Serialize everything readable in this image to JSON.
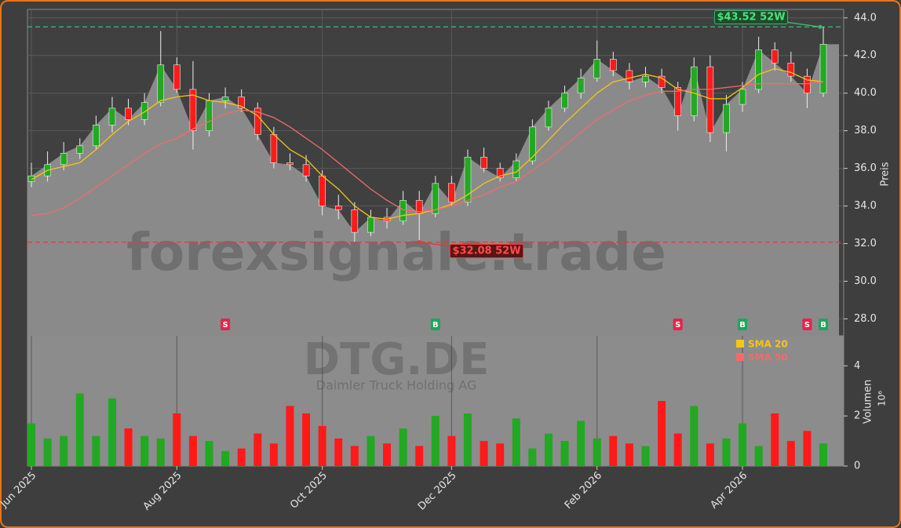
{
  "chart_data": {
    "type": "candlestick",
    "x": [
      "2025-06",
      "2025-06",
      "2025-06",
      "2025-06",
      "2025-06",
      "2025-07",
      "2025-07",
      "2025-07",
      "2025-07",
      "2025-08",
      "2025-08",
      "2025-08",
      "2025-08",
      "2025-09",
      "2025-09",
      "2025-09",
      "2025-09",
      "2025-09",
      "2025-10",
      "2025-10",
      "2025-10",
      "2025-10",
      "2025-11",
      "2025-11",
      "2025-11",
      "2025-11",
      "2025-12",
      "2025-12",
      "2025-12",
      "2025-12",
      "2025-12",
      "2026-01",
      "2026-01",
      "2026-01",
      "2026-01",
      "2026-02",
      "2026-02",
      "2026-02",
      "2026-02",
      "2026-03",
      "2026-03",
      "2026-03",
      "2026-03",
      "2026-03",
      "2026-04",
      "2026-04",
      "2026-04",
      "2026-04",
      "2026-05",
      "2026-05"
    ],
    "open": [
      35.3,
      35.6,
      36.2,
      36.8,
      37.2,
      38.3,
      39.2,
      38.6,
      39.5,
      41.5,
      40.2,
      38.0,
      39.6,
      39.8,
      39.2,
      37.8,
      36.3,
      36.2,
      35.6,
      34.0,
      33.8,
      32.6,
      33.4,
      33.2,
      34.3,
      33.6,
      35.2,
      34.2,
      36.6,
      36.0,
      35.5,
      36.4,
      38.2,
      39.2,
      40.0,
      40.8,
      41.8,
      41.2,
      40.6,
      40.9,
      40.3,
      38.8,
      41.4,
      37.9,
      39.4,
      40.2,
      42.3,
      41.6,
      40.9,
      40.0
    ],
    "high": [
      36.3,
      36.9,
      37.4,
      37.6,
      38.8,
      39.8,
      39.7,
      40.0,
      43.3,
      41.9,
      41.7,
      40.0,
      40.3,
      40.2,
      39.5,
      38.2,
      36.8,
      36.7,
      35.9,
      34.6,
      34.2,
      33.8,
      33.9,
      34.8,
      34.8,
      35.6,
      35.6,
      37.0,
      37.1,
      36.3,
      36.8,
      38.6,
      39.6,
      40.4,
      41.3,
      42.8,
      42.2,
      41.6,
      41.4,
      41.3,
      40.6,
      41.9,
      42.0,
      39.9,
      40.6,
      43.0,
      42.7,
      42.2,
      41.3,
      43.52
    ],
    "low": [
      35.0,
      35.3,
      35.9,
      36.5,
      37.0,
      37.9,
      38.3,
      38.3,
      39.3,
      40.0,
      37.0,
      37.7,
      39.2,
      39.0,
      37.5,
      36.0,
      35.9,
      35.3,
      33.5,
      33.3,
      32.1,
      32.4,
      32.8,
      33.0,
      32.08,
      33.4,
      34.0,
      34.0,
      35.8,
      35.3,
      35.3,
      36.2,
      38.0,
      39.0,
      39.7,
      40.6,
      40.9,
      40.2,
      40.3,
      40.0,
      38.0,
      38.5,
      37.4,
      36.9,
      39.0,
      40.0,
      41.2,
      40.6,
      39.2,
      39.8
    ],
    "close": [
      35.6,
      36.2,
      36.8,
      37.2,
      38.3,
      39.2,
      38.6,
      39.5,
      41.5,
      40.2,
      38.0,
      39.6,
      39.8,
      39.2,
      37.8,
      36.3,
      36.2,
      35.6,
      34.0,
      33.8,
      32.6,
      33.4,
      33.2,
      34.3,
      33.6,
      35.2,
      34.2,
      36.6,
      36.0,
      35.5,
      36.4,
      38.2,
      39.2,
      40.0,
      40.8,
      41.8,
      41.2,
      40.6,
      40.9,
      40.3,
      38.8,
      41.4,
      37.9,
      39.4,
      40.2,
      42.3,
      41.6,
      40.9,
      40.0,
      42.6
    ],
    "up_color": "#22a822",
    "down_color": "#ff1a1a",
    "sma": [
      {
        "name": "SMA 20",
        "color": "#f5c518",
        "values": [
          35.4,
          35.9,
          36.1,
          36.3,
          37.0,
          37.8,
          38.5,
          39.0,
          39.6,
          39.8,
          39.9,
          39.6,
          39.5,
          39.3,
          38.8,
          37.8,
          37.0,
          36.5,
          35.6,
          34.9,
          34.0,
          33.4,
          33.3,
          33.5,
          33.6,
          33.8,
          34.1,
          34.6,
          35.2,
          35.6,
          35.8,
          36.6,
          37.5,
          38.4,
          39.2,
          40.0,
          40.6,
          40.8,
          41.0,
          40.8,
          40.2,
          40.0,
          39.7,
          39.7,
          40.3,
          41.0,
          41.3,
          41.1,
          40.7,
          40.6
        ]
      },
      {
        "name": "SMA 50",
        "color": "#f26b6b",
        "values": [
          33.5,
          33.6,
          33.9,
          34.4,
          35.0,
          35.6,
          36.2,
          36.8,
          37.3,
          37.6,
          38.1,
          38.5,
          38.9,
          39.1,
          39.0,
          38.7,
          38.2,
          37.6,
          37.0,
          36.3,
          35.6,
          34.9,
          34.3,
          33.8,
          33.7,
          33.8,
          34.0,
          34.3,
          34.6,
          35.0,
          35.3,
          35.9,
          36.5,
          37.2,
          37.9,
          38.6,
          39.1,
          39.6,
          39.9,
          40.1,
          40.1,
          40.2,
          40.2,
          40.3,
          40.4,
          40.5,
          40.5,
          40.5,
          40.5,
          40.6
        ]
      }
    ],
    "signals": [
      null,
      null,
      null,
      null,
      null,
      null,
      null,
      null,
      null,
      null,
      null,
      null,
      "S",
      null,
      null,
      null,
      null,
      null,
      null,
      null,
      null,
      null,
      null,
      null,
      null,
      "B",
      null,
      null,
      null,
      null,
      null,
      null,
      null,
      null,
      null,
      null,
      null,
      null,
      null,
      null,
      "S",
      null,
      null,
      null,
      "B",
      null,
      null,
      null,
      "S",
      "B"
    ],
    "high_52w": {
      "value": 43.52,
      "label": "$43.52 52W"
    },
    "low_52w": {
      "value": 32.08,
      "label": "$32.08 52W"
    },
    "ylabel": "Preis",
    "ylim": [
      27.1,
      44.45
    ],
    "yticks": [
      {
        "value": 28,
        "label": "28.0"
      },
      {
        "value": 30,
        "label": "30.0"
      },
      {
        "value": 32,
        "label": "32.0"
      },
      {
        "value": 34,
        "label": "34.0"
      },
      {
        "value": 36,
        "label": "36.0"
      },
      {
        "value": 38,
        "label": "38.0"
      },
      {
        "value": 40,
        "label": "40.0"
      },
      {
        "value": 42,
        "label": "42.0"
      },
      {
        "value": 44,
        "label": "44.0"
      }
    ],
    "xticks": [
      {
        "value": "2025-06",
        "label": "Jun 2025"
      },
      {
        "value": "2025-08",
        "label": "Aug 2025"
      },
      {
        "value": "2025-10",
        "label": "Oct 2025"
      },
      {
        "value": "2025-12",
        "label": "Dec 2025"
      },
      {
        "value": "2026-02",
        "label": "Feb 2026"
      },
      {
        "value": "2026-04",
        "label": "Apr 2026"
      }
    ],
    "volume": {
      "ylabel": "Volumen",
      "scale": "10⁶",
      "ylim": [
        0,
        5.2
      ],
      "yticks": [
        0,
        2,
        4
      ],
      "values": [
        1.7,
        1.1,
        1.2,
        2.9,
        1.2,
        2.7,
        1.5,
        1.2,
        1.1,
        2.1,
        1.2,
        1.0,
        0.6,
        0.7,
        1.3,
        0.9,
        2.4,
        2.1,
        1.6,
        1.1,
        0.8,
        1.2,
        0.9,
        1.5,
        0.8,
        2.0,
        1.2,
        2.1,
        1.0,
        0.9,
        1.9,
        0.7,
        1.3,
        1.0,
        1.8,
        1.1,
        1.2,
        0.9,
        0.8,
        2.6,
        1.3,
        2.4,
        0.9,
        1.1,
        1.7,
        0.8,
        2.1,
        1.0,
        1.4,
        0.9
      ]
    },
    "watermark": "forexsignale.trade",
    "symbol": "DTG.DE",
    "company": "Daimler Truck Holding AG",
    "grid": true
  }
}
